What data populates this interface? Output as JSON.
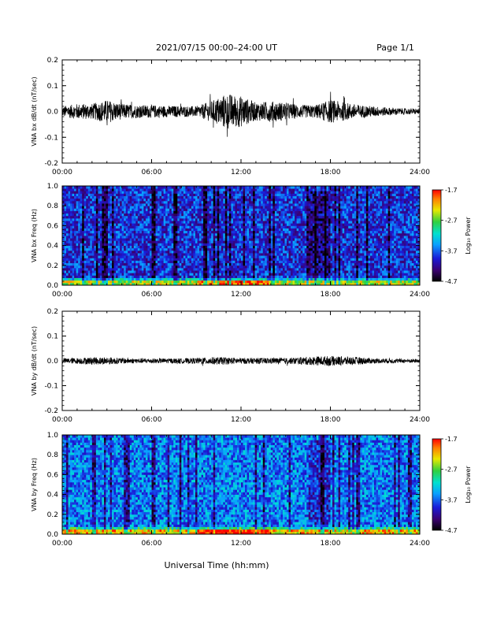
{
  "header": {
    "date_range": "2021/07/15  00:00–24:00 UT",
    "page": "Page 1/1"
  },
  "footer": {
    "xlabel": "Universal Time (hh:mm)"
  },
  "chart_data": [
    {
      "type": "line",
      "ylabel": "VNA bx dB/dt (nT/sec)",
      "xlim": [
        "00:00",
        "24:00"
      ],
      "ylim": [
        -0.2,
        0.2
      ],
      "x_ticks": [
        "00:00",
        "06:00",
        "12:00",
        "18:00",
        "24:00"
      ],
      "y_ticks": [
        "0.2",
        "0.1",
        "0.0",
        "-0.1",
        "-0.2"
      ],
      "y_tick_values": [
        0.2,
        0.1,
        0.0,
        -0.1,
        -0.2
      ],
      "envelope_hours": [
        0,
        1,
        2,
        3,
        4,
        5,
        6,
        7,
        8,
        9,
        10,
        11,
        12,
        13,
        14,
        15,
        16,
        17,
        18,
        19,
        20,
        21,
        22,
        23,
        24
      ],
      "envelope_amplitude": [
        0.02,
        0.03,
        0.03,
        0.045,
        0.03,
        0.025,
        0.025,
        0.022,
        0.022,
        0.02,
        0.04,
        0.07,
        0.06,
        0.035,
        0.04,
        0.035,
        0.025,
        0.025,
        0.045,
        0.035,
        0.025,
        0.02,
        0.015,
        0.012,
        0.01
      ],
      "color": "#000000"
    },
    {
      "type": "heatmap",
      "ylabel": "VNA bx Freq (Hz)",
      "xlim": [
        "00:00",
        "24:00"
      ],
      "ylim": [
        0.0,
        1.0
      ],
      "x_ticks": [
        "00:00",
        "06:00",
        "12:00",
        "18:00",
        "24:00"
      ],
      "y_ticks": [
        "1.0",
        "0.8",
        "0.6",
        "0.4",
        "0.2",
        "0.0"
      ],
      "y_tick_values": [
        1.0,
        0.8,
        0.6,
        0.4,
        0.2,
        0.0
      ],
      "colorbar": {
        "label": "Log₁₀ Power",
        "min": -4.7,
        "max": -1.7,
        "ticks": [
          "-1.7",
          "-2.7",
          "-3.7",
          "-4.7"
        ]
      },
      "background_level": -3.9
    },
    {
      "type": "line",
      "ylabel": "VNA by dB/dt (nT/sec)",
      "xlim": [
        "00:00",
        "24:00"
      ],
      "ylim": [
        -0.2,
        0.2
      ],
      "x_ticks": [
        "00:00",
        "06:00",
        "12:00",
        "18:00",
        "24:00"
      ],
      "y_ticks": [
        "0.2",
        "0.1",
        "0.0",
        "-0.1",
        "-0.2"
      ],
      "y_tick_values": [
        0.2,
        0.1,
        0.0,
        -0.1,
        -0.2
      ],
      "envelope_hours": [
        0,
        1,
        2,
        3,
        4,
        5,
        6,
        7,
        8,
        9,
        10,
        11,
        12,
        13,
        14,
        15,
        16,
        17,
        18,
        19,
        20,
        21,
        22,
        23,
        24
      ],
      "envelope_amplitude": [
        0.01,
        0.012,
        0.015,
        0.015,
        0.012,
        0.01,
        0.01,
        0.01,
        0.01,
        0.012,
        0.015,
        0.015,
        0.012,
        0.012,
        0.012,
        0.012,
        0.015,
        0.018,
        0.02,
        0.018,
        0.015,
        0.01,
        0.01,
        0.008,
        0.008
      ],
      "color": "#000000"
    },
    {
      "type": "heatmap",
      "ylabel": "VNA by Freq (Hz)",
      "xlim": [
        "00:00",
        "24:00"
      ],
      "ylim": [
        0.0,
        1.0
      ],
      "x_ticks": [
        "00:00",
        "06:00",
        "12:00",
        "18:00",
        "24:00"
      ],
      "y_ticks": [
        "1.0",
        "0.8",
        "0.6",
        "0.4",
        "0.2",
        "0.0"
      ],
      "y_tick_values": [
        1.0,
        0.8,
        0.6,
        0.4,
        0.2,
        0.0
      ],
      "colorbar": {
        "label": "Log₁₀ Power",
        "min": -4.7,
        "max": -1.7,
        "ticks": [
          "-1.7",
          "-2.7",
          "-3.7",
          "-4.7"
        ]
      },
      "background_level": -3.6
    }
  ]
}
